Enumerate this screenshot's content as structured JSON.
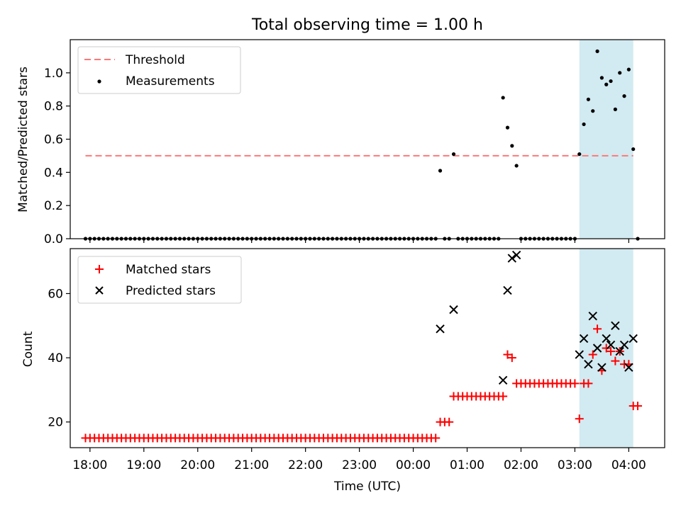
{
  "figure": {
    "title": "Total observing time = 1.00 h",
    "xlabel": "Time (UTC)",
    "x_ticks": [
      "18:00",
      "19:00",
      "20:00",
      "21:00",
      "22:00",
      "23:00",
      "00:00",
      "01:00",
      "02:00",
      "03:00",
      "04:00"
    ],
    "xlim": [
      "17:38",
      "04:40"
    ],
    "highlight_span": [
      "03:05",
      "04:05"
    ],
    "highlight_color": "#add8e6"
  },
  "chart_data": [
    {
      "type": "scatter",
      "ylabel": "Matched/Predicted stars",
      "ylim": [
        0,
        1.2
      ],
      "y_ticks": [
        "0.0",
        "0.2",
        "0.4",
        "0.6",
        "0.8",
        "1.0"
      ],
      "legend_position": "top-left",
      "threshold": {
        "name": "Threshold",
        "value": 0.5,
        "x_range": [
          "17:55",
          "04:05"
        ],
        "color": "#ff7777",
        "style": "dashed"
      },
      "series": [
        {
          "name": "Measurements",
          "color": "#000000",
          "points": [
            [
              "17:55",
              0
            ],
            [
              "18:00",
              0
            ],
            [
              "18:05",
              0
            ],
            [
              "18:10",
              0
            ],
            [
              "18:15",
              0
            ],
            [
              "18:20",
              0
            ],
            [
              "18:25",
              0
            ],
            [
              "18:30",
              0
            ],
            [
              "18:35",
              0
            ],
            [
              "18:40",
              0
            ],
            [
              "18:45",
              0
            ],
            [
              "18:50",
              0
            ],
            [
              "18:55",
              0
            ],
            [
              "19:00",
              0
            ],
            [
              "19:05",
              0
            ],
            [
              "19:10",
              0
            ],
            [
              "19:15",
              0
            ],
            [
              "19:20",
              0
            ],
            [
              "19:25",
              0
            ],
            [
              "19:30",
              0
            ],
            [
              "19:35",
              0
            ],
            [
              "19:40",
              0
            ],
            [
              "19:45",
              0
            ],
            [
              "19:50",
              0
            ],
            [
              "19:55",
              0
            ],
            [
              "20:00",
              0
            ],
            [
              "20:05",
              0
            ],
            [
              "20:10",
              0
            ],
            [
              "20:15",
              0
            ],
            [
              "20:20",
              0
            ],
            [
              "20:25",
              0
            ],
            [
              "20:30",
              0
            ],
            [
              "20:35",
              0
            ],
            [
              "20:40",
              0
            ],
            [
              "20:45",
              0
            ],
            [
              "20:50",
              0
            ],
            [
              "20:55",
              0
            ],
            [
              "21:00",
              0
            ],
            [
              "21:05",
              0
            ],
            [
              "21:10",
              0
            ],
            [
              "21:15",
              0
            ],
            [
              "21:20",
              0
            ],
            [
              "21:25",
              0
            ],
            [
              "21:30",
              0
            ],
            [
              "21:35",
              0
            ],
            [
              "21:40",
              0
            ],
            [
              "21:45",
              0
            ],
            [
              "21:50",
              0
            ],
            [
              "21:55",
              0
            ],
            [
              "22:00",
              0
            ],
            [
              "22:05",
              0
            ],
            [
              "22:10",
              0
            ],
            [
              "22:15",
              0
            ],
            [
              "22:20",
              0
            ],
            [
              "22:25",
              0
            ],
            [
              "22:30",
              0
            ],
            [
              "22:35",
              0
            ],
            [
              "22:40",
              0
            ],
            [
              "22:45",
              0
            ],
            [
              "22:50",
              0
            ],
            [
              "22:55",
              0
            ],
            [
              "23:00",
              0
            ],
            [
              "23:05",
              0
            ],
            [
              "23:10",
              0
            ],
            [
              "23:15",
              0
            ],
            [
              "23:20",
              0
            ],
            [
              "23:25",
              0
            ],
            [
              "23:30",
              0
            ],
            [
              "23:35",
              0
            ],
            [
              "23:40",
              0
            ],
            [
              "23:45",
              0
            ],
            [
              "23:50",
              0
            ],
            [
              "23:55",
              0
            ],
            [
              "00:00",
              0
            ],
            [
              "00:05",
              0
            ],
            [
              "00:10",
              0
            ],
            [
              "00:15",
              0
            ],
            [
              "00:20",
              0
            ],
            [
              "00:25",
              0
            ],
            [
              "00:30",
              0.41
            ],
            [
              "00:35",
              0
            ],
            [
              "00:40",
              0
            ],
            [
              "00:45",
              0.51
            ],
            [
              "00:50",
              0
            ],
            [
              "00:55",
              0
            ],
            [
              "01:00",
              0
            ],
            [
              "01:05",
              0
            ],
            [
              "01:10",
              0
            ],
            [
              "01:15",
              0
            ],
            [
              "01:20",
              0
            ],
            [
              "01:25",
              0
            ],
            [
              "01:30",
              0
            ],
            [
              "01:35",
              0
            ],
            [
              "01:40",
              0.85
            ],
            [
              "01:45",
              0.67
            ],
            [
              "01:50",
              0.56
            ],
            [
              "01:55",
              0.44
            ],
            [
              "02:00",
              0
            ],
            [
              "02:05",
              0
            ],
            [
              "02:10",
              0
            ],
            [
              "02:15",
              0
            ],
            [
              "02:20",
              0
            ],
            [
              "02:25",
              0
            ],
            [
              "02:30",
              0
            ],
            [
              "02:35",
              0
            ],
            [
              "02:40",
              0
            ],
            [
              "02:45",
              0
            ],
            [
              "02:50",
              0
            ],
            [
              "02:55",
              0
            ],
            [
              "03:00",
              0
            ],
            [
              "03:05",
              0.51
            ],
            [
              "03:10",
              0.69
            ],
            [
              "03:15",
              0.84
            ],
            [
              "03:20",
              0.77
            ],
            [
              "03:25",
              1.13
            ],
            [
              "03:30",
              0.97
            ],
            [
              "03:35",
              0.93
            ],
            [
              "03:40",
              0.95
            ],
            [
              "03:45",
              0.78
            ],
            [
              "03:50",
              1.0
            ],
            [
              "03:55",
              0.86
            ],
            [
              "04:00",
              1.02
            ],
            [
              "04:05",
              0.54
            ],
            [
              "04:10",
              0
            ]
          ]
        }
      ]
    },
    {
      "type": "scatter",
      "ylabel": "Count",
      "ylim": [
        12,
        74
      ],
      "y_ticks": [
        "20",
        "40",
        "60"
      ],
      "legend_position": "top-left",
      "series": [
        {
          "name": "Matched stars",
          "marker": "plus",
          "color": "#ff0000",
          "points": [
            [
              "17:55",
              15
            ],
            [
              "18:00",
              15
            ],
            [
              "18:05",
              15
            ],
            [
              "18:10",
              15
            ],
            [
              "18:15",
              15
            ],
            [
              "18:20",
              15
            ],
            [
              "18:25",
              15
            ],
            [
              "18:30",
              15
            ],
            [
              "18:35",
              15
            ],
            [
              "18:40",
              15
            ],
            [
              "18:45",
              15
            ],
            [
              "18:50",
              15
            ],
            [
              "18:55",
              15
            ],
            [
              "19:00",
              15
            ],
            [
              "19:05",
              15
            ],
            [
              "19:10",
              15
            ],
            [
              "19:15",
              15
            ],
            [
              "19:20",
              15
            ],
            [
              "19:25",
              15
            ],
            [
              "19:30",
              15
            ],
            [
              "19:35",
              15
            ],
            [
              "19:40",
              15
            ],
            [
              "19:45",
              15
            ],
            [
              "19:50",
              15
            ],
            [
              "19:55",
              15
            ],
            [
              "20:00",
              15
            ],
            [
              "20:05",
              15
            ],
            [
              "20:10",
              15
            ],
            [
              "20:15",
              15
            ],
            [
              "20:20",
              15
            ],
            [
              "20:25",
              15
            ],
            [
              "20:30",
              15
            ],
            [
              "20:35",
              15
            ],
            [
              "20:40",
              15
            ],
            [
              "20:45",
              15
            ],
            [
              "20:50",
              15
            ],
            [
              "20:55",
              15
            ],
            [
              "21:00",
              15
            ],
            [
              "21:05",
              15
            ],
            [
              "21:10",
              15
            ],
            [
              "21:15",
              15
            ],
            [
              "21:20",
              15
            ],
            [
              "21:25",
              15
            ],
            [
              "21:30",
              15
            ],
            [
              "21:35",
              15
            ],
            [
              "21:40",
              15
            ],
            [
              "21:45",
              15
            ],
            [
              "21:50",
              15
            ],
            [
              "21:55",
              15
            ],
            [
              "22:00",
              15
            ],
            [
              "22:05",
              15
            ],
            [
              "22:10",
              15
            ],
            [
              "22:15",
              15
            ],
            [
              "22:20",
              15
            ],
            [
              "22:25",
              15
            ],
            [
              "22:30",
              15
            ],
            [
              "22:35",
              15
            ],
            [
              "22:40",
              15
            ],
            [
              "22:45",
              15
            ],
            [
              "22:50",
              15
            ],
            [
              "22:55",
              15
            ],
            [
              "23:00",
              15
            ],
            [
              "23:05",
              15
            ],
            [
              "23:10",
              15
            ],
            [
              "23:15",
              15
            ],
            [
              "23:20",
              15
            ],
            [
              "23:25",
              15
            ],
            [
              "23:30",
              15
            ],
            [
              "23:35",
              15
            ],
            [
              "23:40",
              15
            ],
            [
              "23:45",
              15
            ],
            [
              "23:50",
              15
            ],
            [
              "23:55",
              15
            ],
            [
              "00:00",
              15
            ],
            [
              "00:05",
              15
            ],
            [
              "00:10",
              15
            ],
            [
              "00:15",
              15
            ],
            [
              "00:20",
              15
            ],
            [
              "00:25",
              15
            ],
            [
              "00:30",
              20
            ],
            [
              "00:35",
              20
            ],
            [
              "00:40",
              20
            ],
            [
              "00:45",
              28
            ],
            [
              "00:50",
              28
            ],
            [
              "00:55",
              28
            ],
            [
              "01:00",
              28
            ],
            [
              "01:05",
              28
            ],
            [
              "01:10",
              28
            ],
            [
              "01:15",
              28
            ],
            [
              "01:20",
              28
            ],
            [
              "01:25",
              28
            ],
            [
              "01:30",
              28
            ],
            [
              "01:35",
              28
            ],
            [
              "01:40",
              28
            ],
            [
              "01:45",
              41
            ],
            [
              "01:50",
              40
            ],
            [
              "01:55",
              32
            ],
            [
              "02:00",
              32
            ],
            [
              "02:05",
              32
            ],
            [
              "02:10",
              32
            ],
            [
              "02:15",
              32
            ],
            [
              "02:20",
              32
            ],
            [
              "02:25",
              32
            ],
            [
              "02:30",
              32
            ],
            [
              "02:35",
              32
            ],
            [
              "02:40",
              32
            ],
            [
              "02:45",
              32
            ],
            [
              "02:50",
              32
            ],
            [
              "02:55",
              32
            ],
            [
              "03:00",
              32
            ],
            [
              "03:05",
              21
            ],
            [
              "03:10",
              32
            ],
            [
              "03:15",
              32
            ],
            [
              "03:20",
              41
            ],
            [
              "03:25",
              49
            ],
            [
              "03:30",
              36
            ],
            [
              "03:35",
              43
            ],
            [
              "03:40",
              42
            ],
            [
              "03:45",
              39
            ],
            [
              "03:50",
              42
            ],
            [
              "03:55",
              38
            ],
            [
              "04:00",
              38
            ],
            [
              "04:05",
              25
            ],
            [
              "04:10",
              25
            ]
          ]
        },
        {
          "name": "Predicted stars",
          "marker": "x",
          "color": "#000000",
          "points": [
            [
              "00:30",
              49
            ],
            [
              "00:45",
              55
            ],
            [
              "01:40",
              33
            ],
            [
              "01:45",
              61
            ],
            [
              "01:50",
              71
            ],
            [
              "01:55",
              72
            ],
            [
              "03:05",
              41
            ],
            [
              "03:10",
              46
            ],
            [
              "03:15",
              38
            ],
            [
              "03:20",
              53
            ],
            [
              "03:25",
              43
            ],
            [
              "03:30",
              37
            ],
            [
              "03:35",
              46
            ],
            [
              "03:40",
              44
            ],
            [
              "03:45",
              50
            ],
            [
              "03:50",
              42
            ],
            [
              "03:55",
              44
            ],
            [
              "04:00",
              37
            ],
            [
              "04:05",
              46
            ]
          ]
        }
      ]
    }
  ]
}
